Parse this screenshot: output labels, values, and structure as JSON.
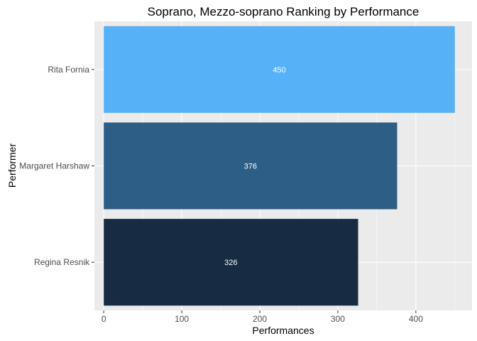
{
  "chart_data": {
    "type": "bar",
    "orientation": "horizontal",
    "title": "Soprano, Mezzo-soprano Ranking by Performance",
    "xlabel": "Performances",
    "ylabel": "Performer",
    "categories": [
      "Rita Fornia",
      "Margaret Harshaw",
      "Regina Resnik"
    ],
    "values": [
      450,
      376,
      326
    ],
    "data_labels": [
      "450",
      "376",
      "326"
    ],
    "colors": [
      "#56B1F7",
      "#2D5E86",
      "#172C43"
    ],
    "xlim": [
      -12,
      472
    ],
    "x_ticks": [
      0,
      100,
      200,
      300,
      400
    ],
    "x_tick_labels": [
      "0",
      "100",
      "200",
      "300",
      "400"
    ],
    "grid": true,
    "panel_background": "#EBEBEB",
    "grid_color": "#FFFFFF",
    "legend": "none"
  }
}
